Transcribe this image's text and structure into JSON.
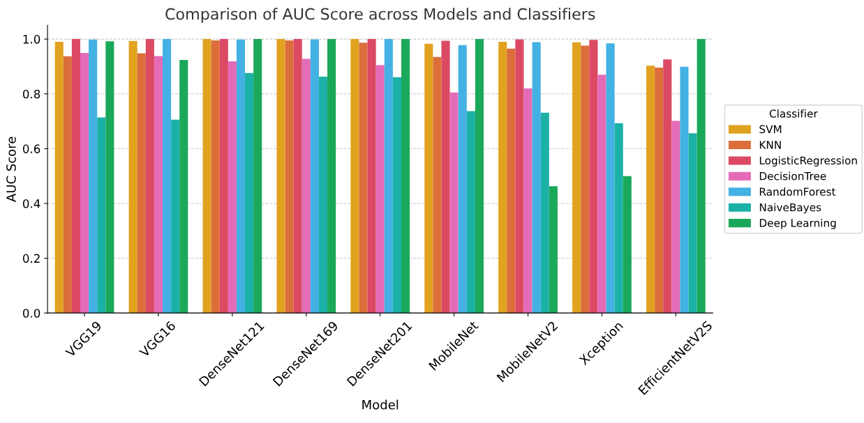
{
  "chart_data": {
    "type": "bar",
    "title": "Comparison of AUC Score across Models and Classifiers",
    "xlabel": "Model",
    "ylabel": "AUC Score",
    "legend_title": "Classifier",
    "categories": [
      "VGG19",
      "VGG16",
      "DenseNet121",
      "DenseNet169",
      "DenseNet201",
      "MobileNet",
      "MobileNetV2",
      "Xception",
      "EfficientNetV2S"
    ],
    "series": [
      {
        "name": "SVM",
        "color": "#e1a21f",
        "values": [
          0.99,
          0.993,
          1.0,
          1.0,
          1.0,
          0.983,
          0.99,
          0.988,
          0.903
        ]
      },
      {
        "name": "KNN",
        "color": "#db6e3a",
        "values": [
          0.937,
          0.948,
          0.995,
          0.995,
          0.987,
          0.935,
          0.965,
          0.976,
          0.896
        ]
      },
      {
        "name": "LogisticRegression",
        "color": "#dc4963",
        "values": [
          1.0,
          1.0,
          1.0,
          1.0,
          1.0,
          0.994,
          0.999,
          0.997,
          0.926
        ]
      },
      {
        "name": "DecisionTree",
        "color": "#e46bb8",
        "values": [
          0.949,
          0.938,
          0.919,
          0.928,
          0.905,
          0.805,
          0.82,
          0.87,
          0.701
        ]
      },
      {
        "name": "RandomForest",
        "color": "#43b1e3",
        "values": [
          0.998,
          1.0,
          0.998,
          0.999,
          1.0,
          0.978,
          0.989,
          0.984,
          0.899
        ]
      },
      {
        "name": "NaiveBayes",
        "color": "#1bb1a7",
        "values": [
          0.714,
          0.706,
          0.876,
          0.863,
          0.861,
          0.737,
          0.731,
          0.693,
          0.656
        ]
      },
      {
        "name": "Deep Learning",
        "color": "#1aa85a",
        "values": [
          0.992,
          0.924,
          1.0,
          1.0,
          1.0,
          1.0,
          0.463,
          0.5,
          1.0
        ]
      }
    ],
    "ylim": [
      0,
      1.05
    ],
    "yticks": [
      {
        "value": 0,
        "label": "0.0"
      },
      {
        "value": 0.2,
        "label": "0.2"
      },
      {
        "value": 0.4,
        "label": "0.4"
      },
      {
        "value": 0.6,
        "label": "0.6"
      },
      {
        "value": 0.8,
        "label": "0.8"
      },
      {
        "value": 1.0,
        "label": "1.0"
      }
    ],
    "grid": "y",
    "legend": "right"
  }
}
